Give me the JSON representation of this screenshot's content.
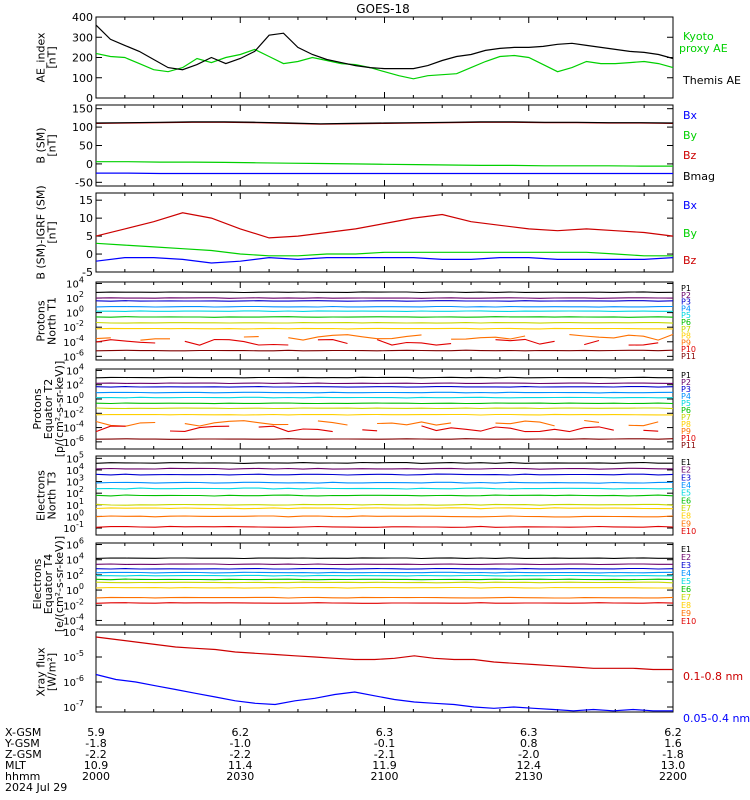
{
  "title": "GOES-18",
  "x_ticks": [
    "2000",
    "2030",
    "2100",
    "2130",
    "2200"
  ],
  "ephemeris": {
    "labels": [
      "X-GSM",
      "Y-GSM",
      "Z-GSM",
      "MLT",
      "hhmm",
      "2024 Jul 29"
    ],
    "columns": [
      [
        "5.9",
        "-1.8",
        "-2.2",
        "10.9",
        "2000"
      ],
      [
        "6.2",
        "-1.0",
        "-2.2",
        "11.4",
        "2030"
      ],
      [
        "6.3",
        "-0.1",
        "-2.1",
        "11.9",
        "2100"
      ],
      [
        "6.3",
        "0.8",
        "-2.0",
        "12.4",
        "2130"
      ],
      [
        "6.2",
        "1.6",
        "-1.8",
        "13.0",
        "2200"
      ]
    ]
  },
  "colors": {
    "black": "#000000",
    "green": "#00d000",
    "blue": "#0000ff",
    "red": "#cc0000",
    "P1": "#000000",
    "P2": "#6a006a",
    "P3": "#0000d0",
    "P4": "#0090ff",
    "P5": "#00d8e0",
    "P6": "#00c000",
    "P7": "#c8d800",
    "P8": "#ffd000",
    "P9": "#ff7000",
    "P10": "#e00000",
    "P11": "#800000"
  },
  "chart_data": [
    {
      "type": "line",
      "ylabel": [
        "AE_index",
        "[nT]"
      ],
      "ylim": [
        0,
        400
      ],
      "yticks": [
        "400",
        "300",
        "200",
        "100",
        "0"
      ],
      "series": [
        {
          "name": "Kyoto proxy AE",
          "color": "green",
          "y": [
            220,
            205,
            200,
            170,
            140,
            130,
            150,
            195,
            175,
            200,
            215,
            240,
            205,
            170,
            180,
            200,
            185,
            170,
            165,
            150,
            130,
            110,
            95,
            110,
            115,
            120,
            150,
            180,
            205,
            210,
            200,
            165,
            130,
            150,
            180,
            170,
            170,
            175,
            180,
            170,
            150
          ]
        },
        {
          "name": "Themis AE",
          "color": "black",
          "y": [
            360,
            290,
            260,
            230,
            190,
            150,
            140,
            165,
            200,
            170,
            195,
            230,
            310,
            320,
            250,
            215,
            190,
            175,
            160,
            150,
            145,
            145,
            145,
            160,
            185,
            205,
            215,
            235,
            245,
            250,
            250,
            255,
            265,
            270,
            260,
            250,
            240,
            230,
            225,
            215,
            195
          ]
        }
      ]
    },
    {
      "type": "line",
      "ylabel": [
        "B (SM)",
        "[nT]"
      ],
      "ylim": [
        -60,
        160
      ],
      "yticks": [
        "150",
        "100",
        "50",
        "0",
        "-50"
      ],
      "series": [
        {
          "name": "Bx",
          "color": "blue",
          "y": [
            -25,
            -25,
            -26,
            -26,
            -26,
            -26,
            -26,
            -26,
            -26,
            -26,
            -26,
            -26,
            -26,
            -26,
            -26,
            -26,
            -26,
            -26,
            -26
          ]
        },
        {
          "name": "By",
          "color": "green",
          "y": [
            6,
            6,
            5,
            5,
            4,
            3,
            2,
            1,
            0,
            -1,
            -2,
            -3,
            -4,
            -4,
            -5,
            -5,
            -5,
            -6,
            -6
          ]
        },
        {
          "name": "Bz",
          "color": "red",
          "y": [
            110,
            111,
            112,
            113,
            113,
            112,
            110,
            108,
            109,
            110,
            111,
            112,
            113,
            113,
            112,
            112,
            111,
            111,
            110
          ]
        },
        {
          "name": "Bmag",
          "color": "black",
          "y": [
            111,
            112,
            113,
            114,
            114,
            113,
            111,
            109,
            110,
            111,
            112,
            113,
            114,
            114,
            113,
            113,
            112,
            112,
            111
          ]
        }
      ]
    },
    {
      "type": "line",
      "ylabel": [
        "B (SM)-IGRF (SM)",
        "[nT]"
      ],
      "ylim": [
        -5,
        17
      ],
      "yticks": [
        "15",
        "10",
        "5",
        "0",
        "-5"
      ],
      "series": [
        {
          "name": "Bx",
          "color": "blue",
          "y": [
            -2,
            -1,
            -1,
            -1.5,
            -2.5,
            -2,
            -1,
            -1.5,
            -1,
            -1,
            -1,
            -1,
            -1.5,
            -1.5,
            -1,
            -1,
            -1.5,
            -1.5,
            -1.5,
            -1.5,
            -1
          ]
        },
        {
          "name": "By",
          "color": "green",
          "y": [
            3,
            2.5,
            2,
            1.5,
            1,
            0,
            -0.5,
            -0.5,
            0,
            0,
            0.5,
            0.5,
            0.5,
            0.5,
            0.5,
            0.5,
            0.5,
            0.5,
            0,
            -0.5,
            -0.5
          ]
        },
        {
          "name": "Bz",
          "color": "red",
          "y": [
            5,
            7,
            9,
            11.5,
            10,
            7,
            4.5,
            5,
            6,
            7,
            8.5,
            10,
            11,
            9,
            8,
            7,
            6.5,
            7,
            6.5,
            6,
            5
          ]
        }
      ]
    },
    {
      "type": "line",
      "ylabel": [
        "Protons",
        "North T1"
      ],
      "log": true,
      "ylim": [
        -6.5,
        4.2
      ],
      "ytick_exps": [
        4,
        2,
        0,
        -2,
        -4,
        -6
      ],
      "ytick_prefix": "10",
      "channels": [
        "P1",
        "P2",
        "P3",
        "P4",
        "P5",
        "P6",
        "P7",
        "P8",
        "P9",
        "P10",
        "P11"
      ],
      "levels_log10": [
        2.8,
        2.0,
        1.6,
        0.8,
        0.2,
        -0.6,
        -1.4,
        -2.2,
        -3.4,
        -4.1,
        -5.2
      ],
      "noisy_channels": [
        "P9",
        "P10"
      ]
    },
    {
      "type": "line",
      "ylabel": [
        "Protons",
        "Equator T2",
        "[p/(cm²-s-sr-keV)]"
      ],
      "log": true,
      "ylim": [
        -7,
        4.2
      ],
      "ytick_exps": [
        4,
        2,
        0,
        -2,
        -4,
        -6
      ],
      "ytick_prefix": "10",
      "channels": [
        "P1",
        "P2",
        "P3",
        "P4",
        "P5",
        "P6",
        "P7",
        "P8",
        "P9",
        "P10",
        "P11"
      ],
      "levels_log10": [
        3.0,
        2.2,
        1.7,
        0.9,
        0.2,
        -0.6,
        -1.3,
        -2.2,
        -3.4,
        -4.2,
        -5.6
      ],
      "noisy_channels": [
        "P9",
        "P10"
      ]
    },
    {
      "type": "line",
      "ylabel": [
        "Electrons",
        "North T3"
      ],
      "log": true,
      "ylim": [
        -1.6,
        5.2
      ],
      "ytick_exps": [
        5,
        4,
        3,
        2,
        1,
        0,
        -1
      ],
      "ytick_prefix": "10",
      "channels": [
        "E1",
        "E2",
        "E3",
        "E4",
        "E5",
        "E6",
        "E7",
        "E8",
        "E9",
        "E10"
      ],
      "levels_log10": [
        4.6,
        4.1,
        3.6,
        2.9,
        2.4,
        1.8,
        1.0,
        0.7,
        0.0,
        -0.9
      ]
    },
    {
      "type": "line",
      "ylabel": [
        "Electrons",
        "Equator T4",
        "[e/(cm²-s-sr-keV)]"
      ],
      "log": true,
      "ylim": [
        -4.6,
        6.2
      ],
      "ytick_exps": [
        6,
        4,
        2,
        0,
        -2,
        -4
      ],
      "ytick_prefix": "10",
      "channels": [
        "E1",
        "E2",
        "E3",
        "E4",
        "E5",
        "E6",
        "E7",
        "E8",
        "E9",
        "E10"
      ],
      "levels_log10": [
        4.2,
        3.4,
        2.8,
        2.3,
        1.9,
        1.4,
        1.0,
        0.3,
        -1.0,
        -1.7
      ]
    },
    {
      "type": "line",
      "ylabel": [
        "Xray flux",
        "[W/m²]"
      ],
      "log": true,
      "ylim": [
        -7.2,
        -4.0
      ],
      "ytick_exps": [
        -4,
        -5,
        -6,
        -7
      ],
      "ytick_prefix": "10",
      "series": [
        {
          "name": "0.1-0.8 nm",
          "color": "red",
          "y": [
            -4.2,
            -4.3,
            -4.4,
            -4.5,
            -4.6,
            -4.65,
            -4.7,
            -4.8,
            -4.85,
            -4.9,
            -4.95,
            -5.0,
            -5.05,
            -5.1,
            -5.1,
            -5.05,
            -4.95,
            -5.05,
            -5.1,
            -5.1,
            -5.2,
            -5.25,
            -5.3,
            -5.35,
            -5.4,
            -5.45,
            -5.45,
            -5.45,
            -5.5,
            -5.5
          ]
        },
        {
          "name": "0.05-0.4 nm",
          "color": "blue",
          "y": [
            -5.7,
            -5.9,
            -6.0,
            -6.15,
            -6.3,
            -6.45,
            -6.6,
            -6.75,
            -6.85,
            -6.9,
            -6.75,
            -6.65,
            -6.5,
            -6.4,
            -6.55,
            -6.7,
            -6.8,
            -6.85,
            -6.9,
            -7.0,
            -7.05,
            -7.0,
            -7.05,
            -7.1,
            -7.15,
            -7.1,
            -7.15,
            -7.1,
            -7.15,
            -7.15
          ]
        }
      ]
    }
  ]
}
